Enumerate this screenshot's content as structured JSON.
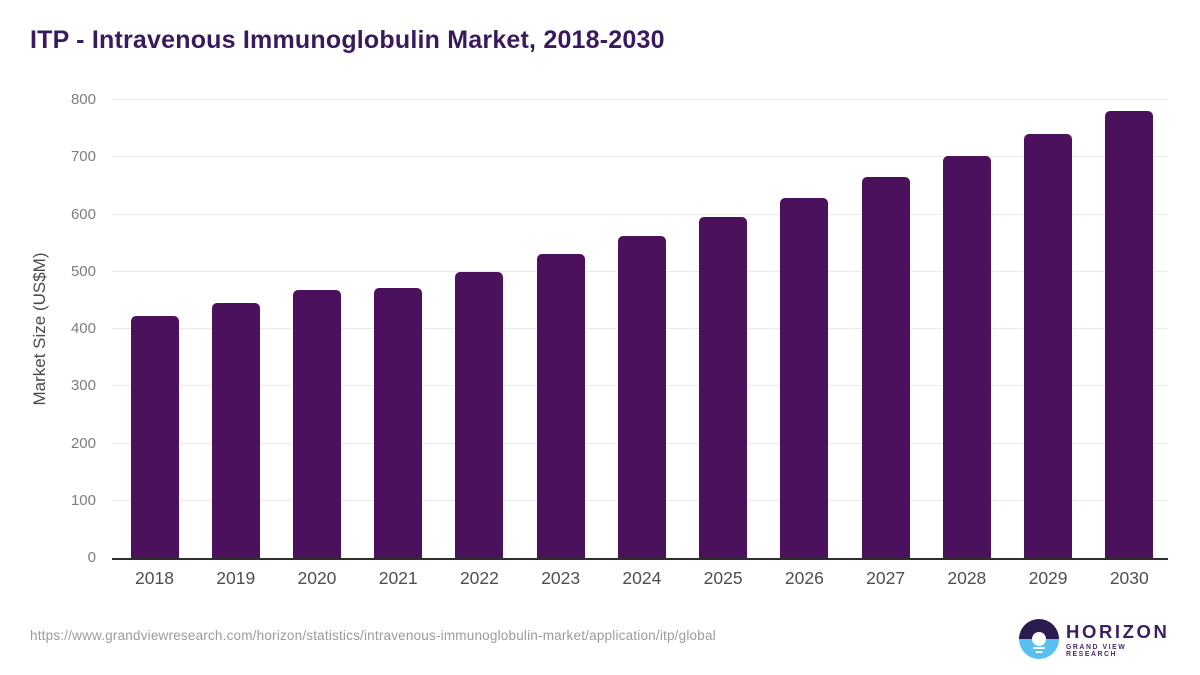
{
  "chart_data": {
    "type": "bar",
    "title": "ITP - Intravenous Immunoglobulin Market, 2018-2030",
    "categories": [
      "2018",
      "2019",
      "2020",
      "2021",
      "2022",
      "2023",
      "2024",
      "2025",
      "2026",
      "2027",
      "2028",
      "2029",
      "2030"
    ],
    "values": [
      422,
      446,
      468,
      472,
      500,
      531,
      562,
      595,
      629,
      665,
      702,
      740,
      781
    ],
    "xlabel": "",
    "ylabel": "Market Size (US$M)",
    "ylim": [
      0,
      800
    ],
    "yticks": [
      0,
      100,
      200,
      300,
      400,
      500,
      600,
      700,
      800
    ],
    "grid": true,
    "legend": "none",
    "bar_color": "#4b115c"
  },
  "footer": {
    "source_url": "https://www.grandviewresearch.com/horizon/statistics/intravenous-immunoglobulin-market/application/itp/global",
    "logo": {
      "brand": "HORIZON",
      "subbrand": "GRAND VIEW RESEARCH"
    }
  },
  "colors": {
    "title": "#3a1a5c",
    "bar": "#4b115c",
    "gridline": "#eaeaea",
    "axis_line": "#2e2e2e",
    "ytick_label": "#7d7d7d",
    "xtick_label": "#4e4e4e",
    "ylabel": "#4a4a4a",
    "source_url": "#9b9b9b",
    "logo_dark_half": "#2c1b4e",
    "logo_blue_half": "#57c0ef",
    "logo_text": "#3b1f5e"
  }
}
